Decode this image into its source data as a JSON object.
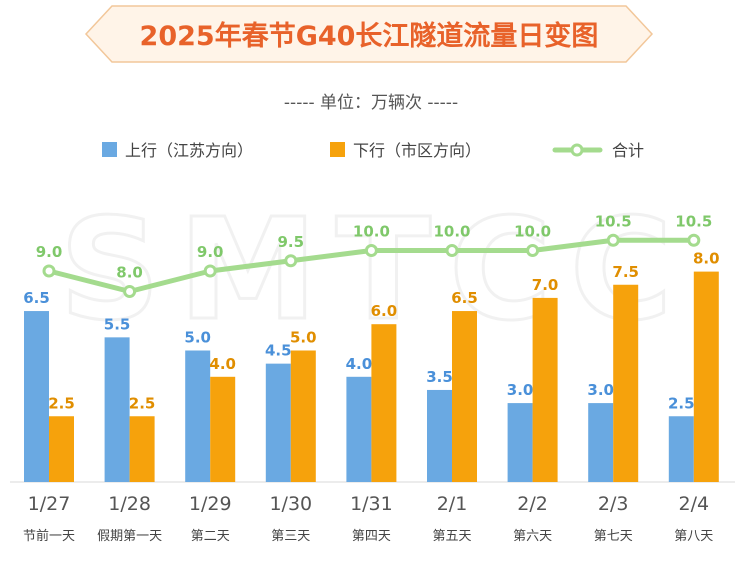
{
  "chart_data": {
    "type": "bar",
    "title": "2025年春节G40长江隧道流量日变图",
    "unit_label": "----- 单位：万辆次 -----",
    "watermark": "SMTCC",
    "categories": [
      "1/27",
      "1/28",
      "1/29",
      "1/30",
      "1/31",
      "2/1",
      "2/2",
      "2/3",
      "2/4"
    ],
    "sublabels": [
      "节前一天",
      "假期第一天",
      "第二天",
      "第三天",
      "第四天",
      "第五天",
      "第六天",
      "第七天",
      "第八天"
    ],
    "series": [
      {
        "name": "上行（江苏方向）",
        "type": "bar",
        "values": [
          6.5,
          5.5,
          5.0,
          4.5,
          4.0,
          3.5,
          3.0,
          3.0,
          2.5
        ]
      },
      {
        "name": "下行（市区方向）",
        "type": "bar",
        "values": [
          2.5,
          2.5,
          4.0,
          5.0,
          6.0,
          6.5,
          7.0,
          7.5,
          8.0
        ]
      },
      {
        "name": "合计",
        "type": "line",
        "values": [
          9.0,
          8.0,
          9.0,
          9.5,
          10.0,
          10.0,
          10.0,
          10.5,
          10.5
        ]
      }
    ],
    "colors": {
      "up": "#6AA9E2",
      "up_label": "#4A90D9",
      "down": "#F6A20C",
      "down_label": "#E08E00",
      "total": "#A4DB8E",
      "total_label": "#7FC86A",
      "title_text": "#E8622A",
      "title_bg": "#FFF4E8",
      "title_border": "#F2C79A",
      "axis": "#D9D9D9"
    },
    "legend_position": "top",
    "grid": false
  }
}
